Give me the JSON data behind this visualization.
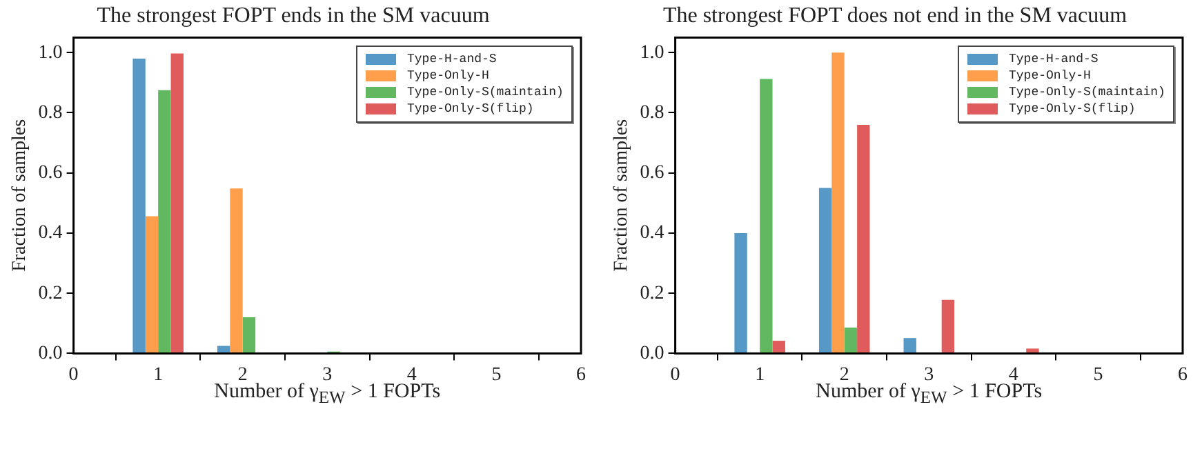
{
  "chart_data": [
    {
      "type": "bar",
      "title": "The strongest FOPT ends in the SM vacuum",
      "xlabel": "Number of γ$_{EW}$ > 1 FOPTs",
      "ylabel": "Fraction of samples",
      "x": [
        1,
        2,
        3,
        4
      ],
      "series": [
        {
          "name": "Type-H-and-S",
          "color": "#5799c6",
          "values": [
            0.98,
            0.025,
            0,
            0
          ]
        },
        {
          "name": "Type-Only-H",
          "color": "#ff9f4b",
          "values": [
            0.456,
            0.548,
            0,
            0
          ]
        },
        {
          "name": "Type-Only-S(maintain)",
          "color": "#61b861",
          "values": [
            0.875,
            0.12,
            0.006,
            0
          ]
        },
        {
          "name": "Type-Only-S(flip)",
          "color": "#e05b5b",
          "values": [
            0.997,
            0,
            0,
            0
          ]
        }
      ],
      "xlim": [
        0,
        6
      ],
      "xticks": [
        0,
        1,
        2,
        3,
        4,
        5,
        6
      ],
      "ylim": [
        0,
        1.05
      ],
      "yticks": [
        {
          "value": 0,
          "label": "0.0"
        },
        {
          "value": 0.2,
          "label": "0.2"
        },
        {
          "value": 0.4,
          "label": "0.4"
        },
        {
          "value": 0.6,
          "label": "0.6"
        },
        {
          "value": 0.8,
          "label": "0.8"
        },
        {
          "value": 1,
          "label": "1.0"
        }
      ],
      "grid": false,
      "legend": "top right"
    },
    {
      "type": "bar",
      "title": "The strongest FOPT does not end in the SM vacuum",
      "xlabel": "Number of γ$_{EW}$ > 1 FOPTs",
      "ylabel": "Fraction of samples",
      "x": [
        1,
        2,
        3,
        4
      ],
      "series": [
        {
          "name": "Type-H-and-S",
          "color": "#5799c6",
          "values": [
            0.4,
            0.55,
            0.051,
            0
          ]
        },
        {
          "name": "Type-Only-H",
          "color": "#ff9f4b",
          "values": [
            0,
            1.0,
            0,
            0
          ]
        },
        {
          "name": "Type-Only-S(maintain)",
          "color": "#61b861",
          "values": [
            0.912,
            0.086,
            0,
            0
          ]
        },
        {
          "name": "Type-Only-S(flip)",
          "color": "#e05b5b",
          "values": [
            0.042,
            0.76,
            0.178,
            0.016
          ]
        }
      ],
      "xlim": [
        0,
        6
      ],
      "xticks": [
        0,
        1,
        2,
        3,
        4,
        5,
        6
      ],
      "ylim": [
        0,
        1.05
      ],
      "yticks": [
        {
          "value": 0,
          "label": "0.0"
        },
        {
          "value": 0.2,
          "label": "0.2"
        },
        {
          "value": 0.4,
          "label": "0.4"
        },
        {
          "value": 0.6,
          "label": "0.6"
        },
        {
          "value": 0.8,
          "label": "0.8"
        },
        {
          "value": 1,
          "label": "1.0"
        }
      ],
      "grid": false,
      "legend": "top right"
    }
  ]
}
